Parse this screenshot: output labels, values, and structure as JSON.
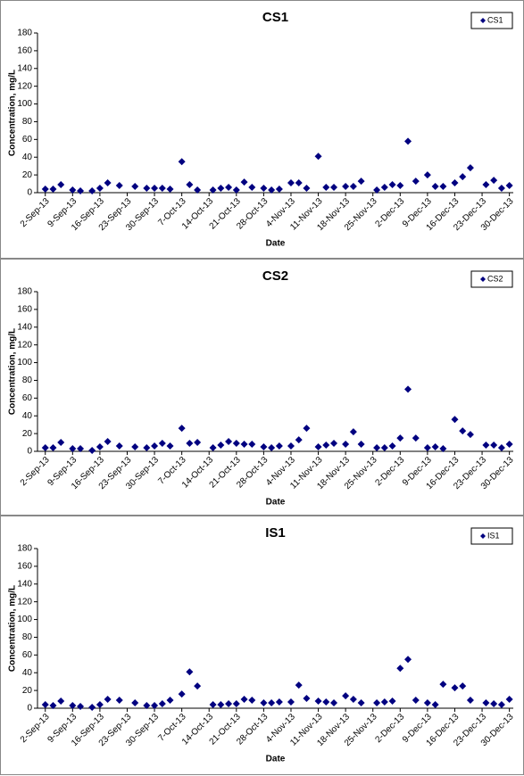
{
  "chart_data": [
    {
      "type": "scatter",
      "title": "CS1",
      "x_label": "Date",
      "y_label": "Concentration, mg/L",
      "legend": "top-right",
      "x": [
        "2013-09-02",
        "2013-09-04",
        "2013-09-06",
        "2013-09-09",
        "2013-09-11",
        "2013-09-14",
        "2013-09-16",
        "2013-09-18",
        "2013-09-21",
        "2013-09-25",
        "2013-09-28",
        "2013-09-30",
        "2013-10-02",
        "2013-10-04",
        "2013-10-07",
        "2013-10-09",
        "2013-10-11",
        "2013-10-15",
        "2013-10-17",
        "2013-10-19",
        "2013-10-21",
        "2013-10-23",
        "2013-10-25",
        "2013-10-28",
        "2013-10-30",
        "2013-11-01",
        "2013-11-04",
        "2013-11-06",
        "2013-11-08",
        "2013-11-11",
        "2013-11-13",
        "2013-11-15",
        "2013-11-18",
        "2013-11-20",
        "2013-11-22",
        "2013-11-26",
        "2013-11-28",
        "2013-11-30",
        "2013-12-02",
        "2013-12-04",
        "2013-12-06",
        "2013-12-09",
        "2013-12-11",
        "2013-12-13",
        "2013-12-16",
        "2013-12-18",
        "2013-12-20",
        "2013-12-24",
        "2013-12-26",
        "2013-12-28",
        "2013-12-30"
      ],
      "series": [
        {
          "name": "CS1",
          "color": "#000080",
          "values": [
            4,
            4,
            9,
            3,
            2,
            2,
            5,
            11,
            8,
            7,
            5,
            5,
            5,
            4,
            35,
            9,
            3,
            3,
            5,
            6,
            3,
            12,
            6,
            5,
            3,
            4,
            11,
            11,
            5,
            41,
            6,
            6,
            7,
            7,
            13,
            3,
            6,
            9,
            8,
            58,
            13,
            20,
            7,
            7,
            11,
            18,
            28,
            9,
            14,
            5,
            8
          ]
        }
      ],
      "xlim": [
        "2013-08-31",
        "2013-12-31"
      ],
      "xticks": [
        {
          "value": "2013-09-02",
          "label": "2-Sep-13"
        },
        {
          "value": "2013-09-09",
          "label": "9-Sep-13"
        },
        {
          "value": "2013-09-16",
          "label": "16-Sep-13"
        },
        {
          "value": "2013-09-23",
          "label": "23-Sep-13"
        },
        {
          "value": "2013-09-30",
          "label": "30-Sep-13"
        },
        {
          "value": "2013-10-07",
          "label": "7-Oct-13"
        },
        {
          "value": "2013-10-14",
          "label": "14-Oct-13"
        },
        {
          "value": "2013-10-21",
          "label": "21-Oct-13"
        },
        {
          "value": "2013-10-28",
          "label": "28-Oct-13"
        },
        {
          "value": "2013-11-04",
          "label": "4-Nov-13"
        },
        {
          "value": "2013-11-11",
          "label": "11-Nov-13"
        },
        {
          "value": "2013-11-18",
          "label": "18-Nov-13"
        },
        {
          "value": "2013-11-25",
          "label": "25-Nov-13"
        },
        {
          "value": "2013-12-02",
          "label": "2-Dec-13"
        },
        {
          "value": "2013-12-09",
          "label": "9-Dec-13"
        },
        {
          "value": "2013-12-16",
          "label": "16-Dec-13"
        },
        {
          "value": "2013-12-23",
          "label": "23-Dec-13"
        },
        {
          "value": "2013-12-30",
          "label": "30-Dec-13"
        }
      ],
      "ylim": [
        0,
        180
      ],
      "yticks": [
        0,
        20,
        40,
        60,
        80,
        100,
        120,
        140,
        160,
        180
      ]
    },
    {
      "type": "scatter",
      "title": "CS2",
      "x_label": "Date",
      "y_label": "Concentration, mg/L",
      "legend": "top-right",
      "x": [
        "2013-09-02",
        "2013-09-04",
        "2013-09-06",
        "2013-09-09",
        "2013-09-11",
        "2013-09-14",
        "2013-09-16",
        "2013-09-18",
        "2013-09-21",
        "2013-09-25",
        "2013-09-28",
        "2013-09-30",
        "2013-10-02",
        "2013-10-04",
        "2013-10-07",
        "2013-10-09",
        "2013-10-11",
        "2013-10-15",
        "2013-10-17",
        "2013-10-19",
        "2013-10-21",
        "2013-10-23",
        "2013-10-25",
        "2013-10-28",
        "2013-10-30",
        "2013-11-01",
        "2013-11-04",
        "2013-11-06",
        "2013-11-08",
        "2013-11-11",
        "2013-11-13",
        "2013-11-15",
        "2013-11-18",
        "2013-11-20",
        "2013-11-22",
        "2013-11-26",
        "2013-11-28",
        "2013-11-30",
        "2013-12-02",
        "2013-12-04",
        "2013-12-06",
        "2013-12-09",
        "2013-12-11",
        "2013-12-13",
        "2013-12-16",
        "2013-12-18",
        "2013-12-20",
        "2013-12-24",
        "2013-12-26",
        "2013-12-28",
        "2013-12-30"
      ],
      "series": [
        {
          "name": "CS2",
          "color": "#000080",
          "values": [
            4,
            4,
            10,
            3,
            3,
            1,
            5,
            11,
            6,
            5,
            4,
            6,
            9,
            6,
            26,
            9,
            10,
            4,
            7,
            11,
            9,
            8,
            8,
            5,
            4,
            6,
            6,
            13,
            26,
            5,
            7,
            9,
            8,
            22,
            8,
            4,
            4,
            6,
            15,
            70,
            15,
            4,
            5,
            3,
            36,
            23,
            19,
            7,
            7,
            4,
            8
          ]
        }
      ],
      "xlim": [
        "2013-08-31",
        "2013-12-31"
      ],
      "xticks": [
        {
          "value": "2013-09-02",
          "label": "2-Sep-13"
        },
        {
          "value": "2013-09-09",
          "label": "9-Sep-13"
        },
        {
          "value": "2013-09-16",
          "label": "16-Sep-13"
        },
        {
          "value": "2013-09-23",
          "label": "23-Sep-13"
        },
        {
          "value": "2013-09-30",
          "label": "30-Sep-13"
        },
        {
          "value": "2013-10-07",
          "label": "7-Oct-13"
        },
        {
          "value": "2013-10-14",
          "label": "14-Oct-13"
        },
        {
          "value": "2013-10-21",
          "label": "21-Oct-13"
        },
        {
          "value": "2013-10-28",
          "label": "28-Oct-13"
        },
        {
          "value": "2013-11-04",
          "label": "4-Nov-13"
        },
        {
          "value": "2013-11-11",
          "label": "11-Nov-13"
        },
        {
          "value": "2013-11-18",
          "label": "18-Nov-13"
        },
        {
          "value": "2013-11-25",
          "label": "25-Nov-13"
        },
        {
          "value": "2013-12-02",
          "label": "2-Dec-13"
        },
        {
          "value": "2013-12-09",
          "label": "9-Dec-13"
        },
        {
          "value": "2013-12-16",
          "label": "16-Dec-13"
        },
        {
          "value": "2013-12-23",
          "label": "23-Dec-13"
        },
        {
          "value": "2013-12-30",
          "label": "30-Dec-13"
        }
      ],
      "ylim": [
        0,
        180
      ],
      "yticks": [
        0,
        20,
        40,
        60,
        80,
        100,
        120,
        140,
        160,
        180
      ]
    },
    {
      "type": "scatter",
      "title": "IS1",
      "x_label": "Date",
      "y_label": "Concentration, mg/L",
      "legend": "top-right",
      "x": [
        "2013-09-02",
        "2013-09-04",
        "2013-09-06",
        "2013-09-09",
        "2013-09-11",
        "2013-09-14",
        "2013-09-16",
        "2013-09-18",
        "2013-09-21",
        "2013-09-25",
        "2013-09-28",
        "2013-09-30",
        "2013-10-02",
        "2013-10-04",
        "2013-10-07",
        "2013-10-09",
        "2013-10-11",
        "2013-10-15",
        "2013-10-17",
        "2013-10-19",
        "2013-10-21",
        "2013-10-23",
        "2013-10-25",
        "2013-10-28",
        "2013-10-30",
        "2013-11-01",
        "2013-11-04",
        "2013-11-06",
        "2013-11-08",
        "2013-11-11",
        "2013-11-13",
        "2013-11-15",
        "2013-11-18",
        "2013-11-20",
        "2013-11-22",
        "2013-11-26",
        "2013-11-28",
        "2013-11-30",
        "2013-12-02",
        "2013-12-04",
        "2013-12-06",
        "2013-12-09",
        "2013-12-11",
        "2013-12-13",
        "2013-12-16",
        "2013-12-18",
        "2013-12-20",
        "2013-12-24",
        "2013-12-26",
        "2013-12-28",
        "2013-12-30"
      ],
      "series": [
        {
          "name": "IS1",
          "color": "#000080",
          "values": [
            4,
            3,
            8,
            3,
            2,
            1,
            4,
            10,
            9,
            6,
            3,
            3,
            5,
            9,
            16,
            41,
            25,
            4,
            4,
            5,
            5,
            10,
            9,
            6,
            6,
            7,
            7,
            26,
            11,
            8,
            7,
            6,
            14,
            10,
            6,
            6,
            7,
            8,
            45,
            55,
            9,
            6,
            4,
            27,
            23,
            25,
            9,
            6,
            5,
            4,
            10
          ]
        }
      ],
      "xlim": [
        "2013-08-31",
        "2013-12-31"
      ],
      "xticks": [
        {
          "value": "2013-09-02",
          "label": "2-Sep-13"
        },
        {
          "value": "2013-09-09",
          "label": "9-Sep-13"
        },
        {
          "value": "2013-09-16",
          "label": "16-Sep-13"
        },
        {
          "value": "2013-09-23",
          "label": "23-Sep-13"
        },
        {
          "value": "2013-09-30",
          "label": "30-Sep-13"
        },
        {
          "value": "2013-10-07",
          "label": "7-Oct-13"
        },
        {
          "value": "2013-10-14",
          "label": "14-Oct-13"
        },
        {
          "value": "2013-10-21",
          "label": "21-Oct-13"
        },
        {
          "value": "2013-10-28",
          "label": "28-Oct-13"
        },
        {
          "value": "2013-11-04",
          "label": "4-Nov-13"
        },
        {
          "value": "2013-11-11",
          "label": "11-Nov-13"
        },
        {
          "value": "2013-11-18",
          "label": "18-Nov-13"
        },
        {
          "value": "2013-11-25",
          "label": "25-Nov-13"
        },
        {
          "value": "2013-12-02",
          "label": "2-Dec-13"
        },
        {
          "value": "2013-12-09",
          "label": "9-Dec-13"
        },
        {
          "value": "2013-12-16",
          "label": "16-Dec-13"
        },
        {
          "value": "2013-12-23",
          "label": "23-Dec-13"
        },
        {
          "value": "2013-12-30",
          "label": "30-Dec-13"
        }
      ],
      "ylim": [
        0,
        180
      ],
      "yticks": [
        0,
        20,
        40,
        60,
        80,
        100,
        120,
        140,
        160,
        180
      ]
    }
  ]
}
